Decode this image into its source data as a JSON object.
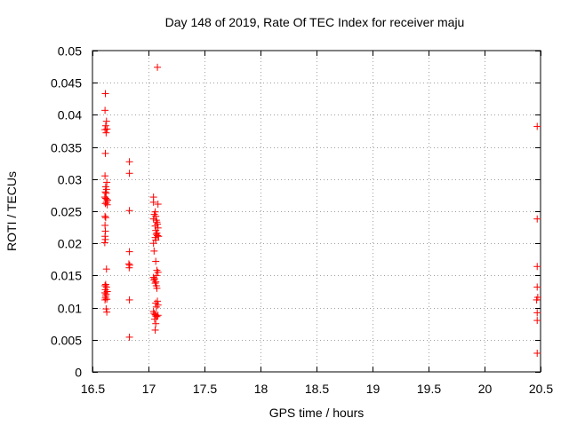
{
  "chart_data": {
    "type": "scatter",
    "title": "Day 148 of 2019, Rate Of TEC Index for receiver maju",
    "xlabel": "GPS time / hours",
    "ylabel": "ROTI / TECUs",
    "xlim": [
      16.5,
      20.5
    ],
    "ylim": [
      0,
      0.05
    ],
    "grid": true,
    "marker": "+",
    "color": "#ff0000",
    "x_ticks": [
      "16.5",
      "17",
      "17.5",
      "18",
      "18.5",
      "19",
      "19.5",
      "20",
      "20.5"
    ],
    "y_ticks": [
      "0",
      "0.005",
      "0.01",
      "0.015",
      "0.02",
      "0.025",
      "0.03",
      "0.035",
      "0.04",
      "0.045",
      "0.05"
    ],
    "points": [
      [
        16.615,
        0.0433
      ],
      [
        16.612,
        0.0407
      ],
      [
        16.625,
        0.039
      ],
      [
        16.618,
        0.0383
      ],
      [
        16.612,
        0.0377
      ],
      [
        16.63,
        0.0378
      ],
      [
        16.622,
        0.0372
      ],
      [
        16.615,
        0.034
      ],
      [
        16.612,
        0.0305
      ],
      [
        16.628,
        0.0295
      ],
      [
        16.618,
        0.0288
      ],
      [
        16.625,
        0.0284
      ],
      [
        16.615,
        0.028
      ],
      [
        16.622,
        0.0278
      ],
      [
        16.61,
        0.0272
      ],
      [
        16.618,
        0.027
      ],
      [
        16.628,
        0.0268
      ],
      [
        16.635,
        0.0267
      ],
      [
        16.625,
        0.0264
      ],
      [
        16.615,
        0.0262
      ],
      [
        16.632,
        0.026
      ],
      [
        16.612,
        0.0242
      ],
      [
        16.618,
        0.024
      ],
      [
        16.612,
        0.0228
      ],
      [
        16.615,
        0.0219
      ],
      [
        16.612,
        0.0211
      ],
      [
        16.615,
        0.0206
      ],
      [
        16.61,
        0.0201
      ],
      [
        16.625,
        0.016
      ],
      [
        16.618,
        0.0136
      ],
      [
        16.612,
        0.0134
      ],
      [
        16.625,
        0.0132
      ],
      [
        16.615,
        0.0128
      ],
      [
        16.632,
        0.0125
      ],
      [
        16.61,
        0.0123
      ],
      [
        16.622,
        0.0121
      ],
      [
        16.618,
        0.0118
      ],
      [
        16.615,
        0.0115
      ],
      [
        16.628,
        0.0113
      ],
      [
        16.612,
        0.0112
      ],
      [
        16.622,
        0.0098
      ],
      [
        16.628,
        0.0093
      ],
      [
        16.83,
        0.0327
      ],
      [
        16.83,
        0.0309
      ],
      [
        16.83,
        0.0251
      ],
      [
        16.83,
        0.0187
      ],
      [
        16.825,
        0.0168
      ],
      [
        16.832,
        0.0166
      ],
      [
        16.828,
        0.0162
      ],
      [
        16.83,
        0.0112
      ],
      [
        16.83,
        0.0054
      ],
      [
        17.08,
        0.0474
      ],
      [
        17.045,
        0.0272
      ],
      [
        17.045,
        0.0264
      ],
      [
        17.085,
        0.0261
      ],
      [
        17.06,
        0.0249
      ],
      [
        17.052,
        0.0245
      ],
      [
        17.065,
        0.0242
      ],
      [
        17.045,
        0.0238
      ],
      [
        17.07,
        0.0236
      ],
      [
        17.075,
        0.0233
      ],
      [
        17.08,
        0.023
      ],
      [
        17.06,
        0.0227
      ],
      [
        17.085,
        0.0224
      ],
      [
        17.065,
        0.022
      ],
      [
        17.075,
        0.0216
      ],
      [
        17.07,
        0.0214
      ],
      [
        17.08,
        0.0212
      ],
      [
        17.09,
        0.0211
      ],
      [
        17.06,
        0.0209
      ],
      [
        17.065,
        0.0205
      ],
      [
        17.045,
        0.02
      ],
      [
        17.05,
        0.0188
      ],
      [
        17.065,
        0.0172
      ],
      [
        17.075,
        0.0158
      ],
      [
        17.085,
        0.0155
      ],
      [
        17.07,
        0.015
      ],
      [
        17.045,
        0.0147
      ],
      [
        17.055,
        0.0145
      ],
      [
        17.05,
        0.0143
      ],
      [
        17.065,
        0.014
      ],
      [
        17.06,
        0.0138
      ],
      [
        17.07,
        0.0134
      ],
      [
        17.075,
        0.013
      ],
      [
        17.08,
        0.011
      ],
      [
        17.065,
        0.0107
      ],
      [
        17.085,
        0.0104
      ],
      [
        17.07,
        0.0101
      ],
      [
        17.045,
        0.0094
      ],
      [
        17.05,
        0.0091
      ],
      [
        17.06,
        0.0089
      ],
      [
        17.065,
        0.0087
      ],
      [
        17.075,
        0.0086
      ],
      [
        17.085,
        0.0088
      ],
      [
        17.055,
        0.0082
      ],
      [
        17.065,
        0.0075
      ],
      [
        17.06,
        0.0065
      ],
      [
        20.47,
        0.0382
      ],
      [
        20.47,
        0.0238
      ],
      [
        20.47,
        0.0164
      ],
      [
        20.47,
        0.0132
      ],
      [
        20.475,
        0.0116
      ],
      [
        20.465,
        0.0112
      ],
      [
        20.47,
        0.0092
      ],
      [
        20.47,
        0.008
      ],
      [
        20.47,
        0.0029
      ]
    ]
  }
}
